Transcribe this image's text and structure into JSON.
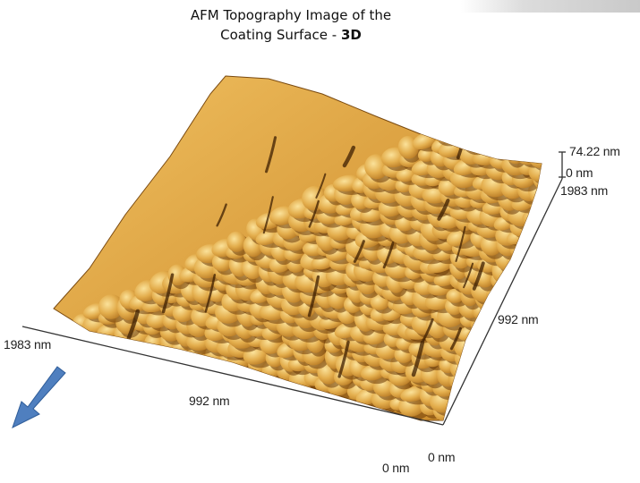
{
  "title": {
    "line1": "AFM Topography Image of the",
    "line2_prefix": "Coating Surface - ",
    "line2_bold": "3D"
  },
  "z_axis": {
    "max_label": "74.22 nm",
    "min_label": "0 nm"
  },
  "x_axis": {
    "max_label": "1983 nm",
    "mid_label": "992 nm",
    "min_label": "0 nm"
  },
  "y_axis": {
    "max_label": "1983 nm",
    "mid_label": "992 nm",
    "min_label": "0 nm"
  },
  "colors": {
    "surface_base": "#d89a2c",
    "surface_highlight": "#f6d27a",
    "surface_shadow": "#6b3a08",
    "arrow": "#4f7fbf",
    "corner_bar": "#c9c9c9"
  }
}
